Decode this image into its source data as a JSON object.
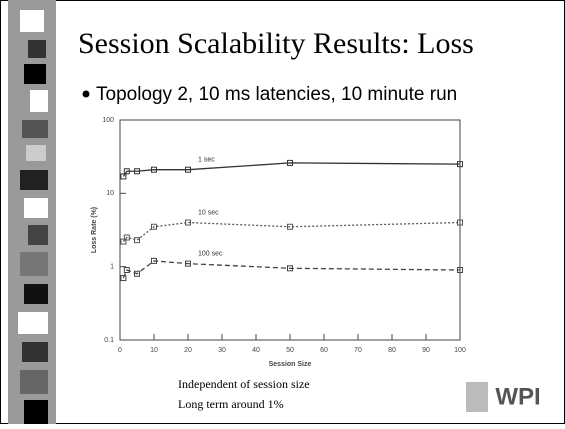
{
  "slide_title": "Session Scalability Results: Loss",
  "bullet": "Topology 2, 10 ms latencies, 10 minute run",
  "notes": [
    "Independent of session size",
    "Long term around 1%"
  ],
  "logo": "WPI",
  "chart_data": {
    "type": "line",
    "x_label": "Session Size",
    "y_label": "Loss Rate (%)",
    "x": [
      1,
      2,
      5,
      10,
      20,
      50,
      100
    ],
    "series": [
      {
        "name": "1 sec",
        "color": "#333333",
        "dash": "solid",
        "values": [
          17,
          20,
          20,
          21,
          21,
          26,
          25
        ]
      },
      {
        "name": "10 sec",
        "color": "#555555",
        "dash": "dotted",
        "values": [
          2.2,
          2.5,
          2.3,
          3.5,
          4,
          3.5,
          4
        ]
      },
      {
        "name": "100 sec",
        "color": "#444444",
        "dash": "dashed",
        "values": [
          0.7,
          0.9,
          0.8,
          1.2,
          1.1,
          0.95,
          0.9
        ]
      }
    ],
    "xlim": [
      0,
      100
    ],
    "xticks": [
      0,
      10,
      20,
      30,
      40,
      50,
      60,
      70,
      80,
      90,
      100
    ],
    "ylim": [
      0.1,
      100
    ],
    "yticks": [
      0.1,
      1,
      10,
      100
    ],
    "ylog": true
  }
}
